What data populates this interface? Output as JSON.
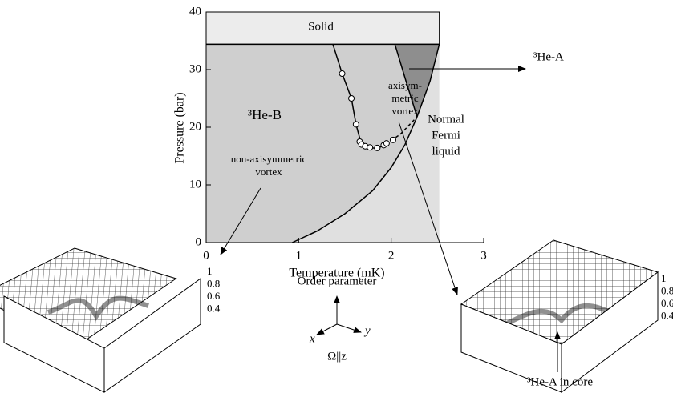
{
  "chart_data": {
    "type": "line",
    "xlabel": "Temperature (mK)",
    "ylabel": "Pressure (bar)",
    "xlim": [
      0,
      3
    ],
    "ylim": [
      0,
      40
    ],
    "xticks": [
      0,
      1,
      2,
      3
    ],
    "yticks": [
      0,
      10,
      20,
      30,
      40
    ],
    "series": [
      {
        "x": [
          0.93,
          1.2,
          1.5,
          1.8,
          2.0,
          2.15,
          2.28
        ],
        "values": [
          0,
          2,
          5,
          9,
          13,
          17,
          21.8
        ],
        "color": "#000000"
      },
      {
        "x": [
          2.28,
          2.16,
          2.04
        ],
        "values": [
          21.8,
          28,
          34.4
        ],
        "color": "#000000"
      },
      {
        "x": [
          2.28,
          2.42,
          2.52
        ],
        "values": [
          21.8,
          28,
          34.4
        ],
        "color": "#000000"
      },
      {
        "x": [
          0,
          2.52
        ],
        "values": [
          34.4,
          34.4
        ],
        "color": "#000000"
      },
      {
        "x": [
          1.37,
          1.47,
          1.57,
          1.62,
          1.67,
          1.75,
          1.85,
          1.95
        ],
        "values": [
          34.4,
          29.3,
          25,
          20.5,
          17.5,
          16.5,
          16.3,
          17.1
        ],
        "color": "#000000"
      },
      {
        "x": [
          1.95,
          2.1,
          2.28
        ],
        "values": [
          17.1,
          18.8,
          21.8
        ],
        "color": "#000000",
        "style": "dashed"
      }
    ],
    "points": {
      "x": [
        1.47,
        1.57,
        1.62,
        1.66,
        1.68,
        1.72,
        1.77,
        1.85,
        1.92,
        1.95,
        2.02
      ],
      "values": [
        29.3,
        25,
        20.5,
        17.5,
        17,
        16.7,
        16.5,
        16.4,
        16.9,
        17.2,
        17.8
      ],
      "color": "#000000"
    },
    "region_colors": {
      "B": "#cfcfcf",
      "normal": "#e0e0e0",
      "A": "#8e8e8e",
      "solid": "#ececec"
    },
    "labels": {
      "solid": "Solid",
      "a_phase": "³He-A",
      "axisym": [
        "axisym-",
        "metric",
        "vortex"
      ],
      "b_phase": "³He-B",
      "normal": [
        "Normal",
        "Fermi",
        "liquid"
      ],
      "nonaxisym": [
        "non-axisymmetric",
        "vortex"
      ],
      "order_parameter": "Order parameter",
      "x": "x",
      "y": "y",
      "omega": "Ω||z",
      "a_core": "³He-A in core"
    },
    "inset_ticks": [
      "1",
      "0.8",
      "0.6",
      "0.4"
    ]
  }
}
